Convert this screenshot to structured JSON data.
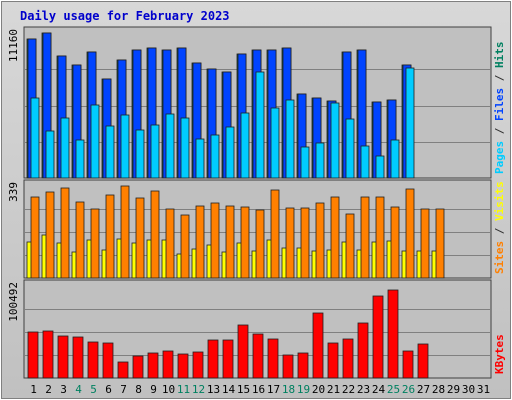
{
  "chart_data": {
    "title": "Daily usage for February 2023",
    "categories": [
      "1",
      "2",
      "3",
      "4",
      "5",
      "6",
      "7",
      "8",
      "9",
      "10",
      "11",
      "12",
      "13",
      "14",
      "15",
      "16",
      "17",
      "18",
      "19",
      "20",
      "21",
      "22",
      "23",
      "24",
      "25",
      "26",
      "27",
      "28",
      "29",
      "30",
      "31"
    ],
    "weekend_days": [
      "4",
      "5",
      "11",
      "12",
      "18",
      "19",
      "25",
      "26"
    ],
    "colors": {
      "weekday_label": "#000000",
      "weekend_label": "#008060",
      "background": "#c0c0c0",
      "grid": "#808080",
      "title": "#0000cc"
    },
    "panels": [
      {
        "type": "bar",
        "scale_label": "11160",
        "ylim": [
          0,
          11160
        ],
        "legend": [
          {
            "text": "Pages",
            "color": "#00ccff"
          },
          {
            "text": " / ",
            "color": "#333333"
          },
          {
            "text": "Files",
            "color": "#0044ff"
          },
          {
            "text": " / ",
            "color": "#333333"
          },
          {
            "text": "Hits",
            "color": "#008060"
          }
        ],
        "series": [
          {
            "key": "hits",
            "color": "#008060",
            "values": [
              10670,
              11160,
              9380,
              8730,
              9730,
              7630,
              9080,
              9880,
              9980,
              9880,
              9980,
              8880,
              8380,
              8120,
              9580,
              9830,
              9830,
              9980,
              6480,
              6160,
              5930,
              9680,
              9830,
              5830,
              6030,
              8730,
              0,
              0,
              0,
              0,
              0
            ]
          },
          {
            "key": "files",
            "color": "#0044ff",
            "values": [
              10670,
              11160,
              9380,
              8730,
              9730,
              7630,
              9080,
              9880,
              9980,
              9880,
              9980,
              8880,
              8380,
              8120,
              9580,
              9830,
              9830,
              9980,
              6480,
              6160,
              5930,
              9680,
              9830,
              5830,
              6030,
              8730,
              0,
              0,
              0,
              0,
              0
            ]
          },
          {
            "key": "pages",
            "color": "#00ccff",
            "values": [
              6190,
              3590,
              4640,
              2890,
              5640,
              4020,
              4850,
              3730,
              4100,
              4920,
              4640,
              2990,
              3330,
              3960,
              4990,
              8180,
              5400,
              6010,
              2390,
              2690,
              5740,
              4570,
              2440,
              1670,
              2950,
              8500,
              0,
              0,
              0,
              0,
              0
            ]
          }
        ]
      },
      {
        "type": "bar",
        "scale_label": "339",
        "ylim": [
          0,
          339
        ],
        "legend": [
          {
            "text": "Sites",
            "color": "#ff8000"
          },
          {
            "text": " / ",
            "color": "#333333"
          },
          {
            "text": "Visits",
            "color": "#ffff00"
          }
        ],
        "series": [
          {
            "key": "visits",
            "color": "#ffff00",
            "values": [
              132,
              158,
              128,
              95,
              140,
              105,
              144,
              130,
              140,
              140,
              88,
              108,
              120,
              95,
              130,
              100,
              140,
              110,
              110,
              98,
              105,
              132,
              105,
              132,
              136,
              100,
              100,
              100,
              0,
              0,
              0
            ]
          },
          {
            "key": "sites",
            "color": "#ff8000",
            "values": [
              299,
              316,
              330,
              279,
              255,
              304,
              339,
              295,
              319,
              255,
              231,
              267,
              277,
              267,
              262,
              252,
              323,
              257,
              257,
              276,
              298,
              237,
              299,
              300,
              263,
              329,
              253,
              253,
              0,
              0,
              0
            ]
          }
        ]
      },
      {
        "type": "bar",
        "scale_label": "100492",
        "ylim": [
          0,
          100492
        ],
        "legend": [
          {
            "text": "KBytes",
            "color": "#ff0000"
          }
        ],
        "series": [
          {
            "key": "kbytes",
            "color": "#ff0000",
            "values": [
              50000,
              51000,
              46000,
              45000,
              39000,
              38000,
              18000,
              24000,
              27000,
              29000,
              26000,
              28000,
              41000,
              42000,
              58000,
              48000,
              43000,
              25000,
              27000,
              71000,
              38000,
              43000,
              60000,
              90000,
              96000,
              29000,
              37000,
              0,
              0,
              0,
              0
            ]
          }
        ]
      }
    ]
  }
}
